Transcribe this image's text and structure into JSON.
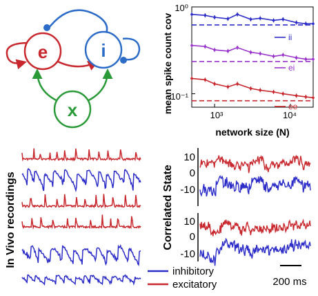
{
  "colors": {
    "red": "#c8282d",
    "blue": "#2c2cc8",
    "green": "#2a9a38",
    "purple": "#9933cc",
    "black": "#000000"
  },
  "diagram": {
    "nodes": [
      {
        "id": "e",
        "label": "e",
        "color": "#c8282d"
      },
      {
        "id": "i",
        "label": "i",
        "color": "#2c6cc8"
      },
      {
        "id": "x",
        "label": "x",
        "color": "#2a9a38"
      }
    ]
  },
  "chart_data": [
    {
      "type": "line",
      "ylabel": "mean spike count cov",
      "xlabel": "network size (N)",
      "xscale": "log",
      "yscale": "log",
      "xlim": [
        500,
        20000
      ],
      "ylim": [
        0.07,
        1.0
      ],
      "x_ticks": [
        "10³",
        "10⁴"
      ],
      "y_ticks": [
        "10⁰",
        "10⁻¹"
      ],
      "x": [
        500,
        750,
        1000,
        1500,
        2000,
        3000,
        4000,
        6000,
        8000,
        12000,
        16000,
        20000
      ],
      "series": [
        {
          "name": "ii",
          "color": "#2c2cc8",
          "values": [
            0.82,
            0.8,
            0.76,
            0.73,
            0.82,
            0.72,
            0.74,
            0.7,
            0.72,
            0.66,
            0.64,
            0.64
          ],
          "limit": 0.62
        },
        {
          "name": "ei",
          "color": "#9933cc",
          "values": [
            0.36,
            0.35,
            0.32,
            0.31,
            0.34,
            0.3,
            0.29,
            0.27,
            0.28,
            0.26,
            0.25,
            0.25
          ],
          "limit": 0.235
        },
        {
          "name": "ee",
          "color": "#c8282d",
          "values": [
            0.15,
            0.145,
            0.13,
            0.12,
            0.13,
            0.115,
            0.11,
            0.105,
            0.1,
            0.095,
            0.092,
            0.09
          ],
          "limit": 0.083
        }
      ]
    },
    {
      "type": "line",
      "title": "In Vivo recordings",
      "series": [
        {
          "color": "#c8282d"
        },
        {
          "color": "#2c2cc8"
        },
        {
          "color": "#c8282d"
        },
        {
          "color": "#c8282d"
        },
        {
          "color": "#2c2cc8"
        },
        {
          "color": "#2c2cc8"
        }
      ]
    },
    {
      "type": "line",
      "title": "Correlated State",
      "y_ticks": [
        "10",
        "0",
        "-10"
      ],
      "ylim": [
        -15,
        15
      ],
      "scalebar": "200 ms",
      "legend": [
        {
          "name": "inhibitory",
          "color": "#2c2cc8"
        },
        {
          "name": "excitatory",
          "color": "#c8282d"
        }
      ]
    }
  ]
}
